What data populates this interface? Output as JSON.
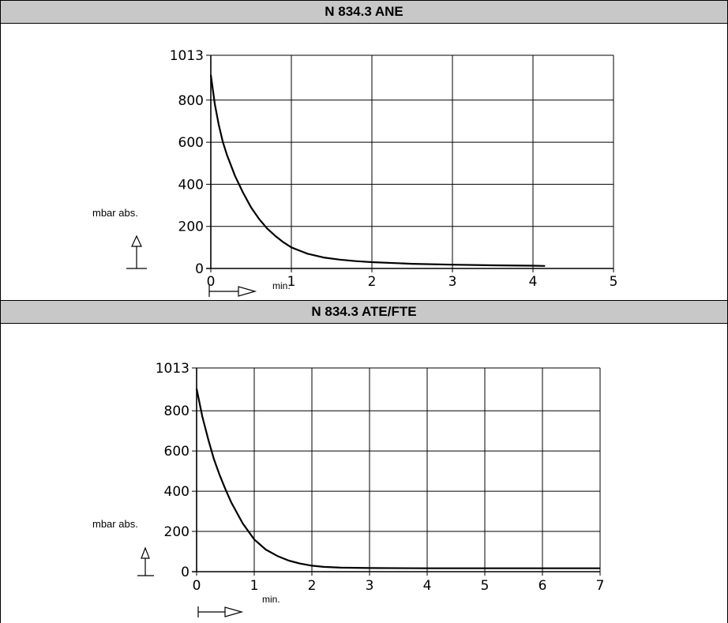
{
  "sections": [
    {
      "header": "N 834.3 ANE",
      "ylabel": "mbar abs.",
      "xlabel": "min."
    },
    {
      "header": "N 834.3 ATE/FTE",
      "ylabel": "mbar abs.",
      "xlabel": "min."
    }
  ],
  "chart_data": [
    {
      "type": "line",
      "title": "N 834.3 ANE",
      "xlabel": "min.",
      "ylabel": "mbar abs.",
      "xlim": [
        0,
        5
      ],
      "ylim": [
        0,
        1013
      ],
      "xticks": [
        "0",
        "1",
        "2",
        "3",
        "4",
        "5"
      ],
      "yticks": [
        {
          "value": 0,
          "label": "0"
        },
        {
          "value": 200,
          "label": "200"
        },
        {
          "value": 400,
          "label": "400"
        },
        {
          "value": 600,
          "label": "600"
        },
        {
          "value": 800,
          "label": "800"
        },
        {
          "value": 1013,
          "label": "1013"
        }
      ],
      "grid": true,
      "x": [
        0,
        0.05,
        0.1,
        0.15,
        0.2,
        0.3,
        0.4,
        0.5,
        0.6,
        0.7,
        0.8,
        0.9,
        1.0,
        1.2,
        1.4,
        1.6,
        1.8,
        2.0,
        2.5,
        3.0,
        3.5,
        4.0,
        4.15
      ],
      "values": [
        920,
        780,
        680,
        600,
        540,
        440,
        360,
        290,
        235,
        190,
        155,
        125,
        100,
        70,
        52,
        42,
        35,
        30,
        22,
        18,
        15,
        13,
        12
      ]
    },
    {
      "type": "line",
      "title": "N 834.3 ATE/FTE",
      "xlabel": "min.",
      "ylabel": "mbar abs.",
      "xlim": [
        0,
        7
      ],
      "ylim": [
        0,
        1013
      ],
      "xticks": [
        "0",
        "1",
        "2",
        "3",
        "4",
        "5",
        "6",
        "7"
      ],
      "yticks": [
        {
          "value": 0,
          "label": "0"
        },
        {
          "value": 200,
          "label": "200"
        },
        {
          "value": 400,
          "label": "400"
        },
        {
          "value": 600,
          "label": "600"
        },
        {
          "value": 800,
          "label": "800"
        },
        {
          "value": 1013,
          "label": "1013"
        }
      ],
      "grid": true,
      "x": [
        0,
        0.1,
        0.2,
        0.3,
        0.4,
        0.5,
        0.6,
        0.8,
        1.0,
        1.2,
        1.4,
        1.6,
        1.8,
        2.0,
        2.2,
        2.5,
        3.0,
        4.0,
        5.0,
        6.0,
        7.0
      ],
      "values": [
        910,
        770,
        660,
        560,
        480,
        410,
        345,
        240,
        160,
        110,
        78,
        55,
        40,
        30,
        24,
        20,
        18,
        17,
        17,
        17,
        17
      ]
    }
  ]
}
